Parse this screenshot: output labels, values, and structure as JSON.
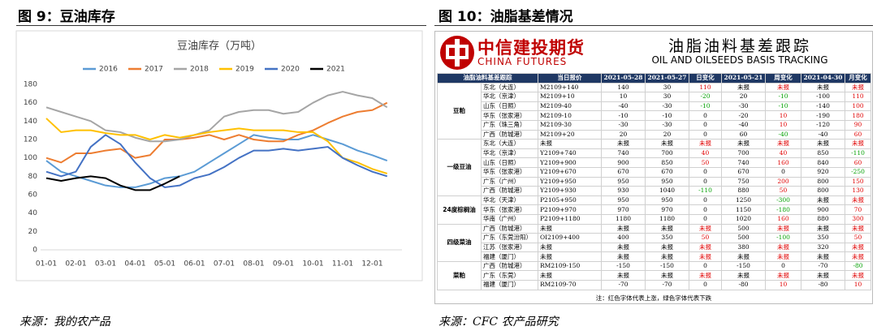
{
  "left": {
    "figure_title": "图 9：豆油库存",
    "source": "来源：我的农产品"
  },
  "chart_data": {
    "type": "line",
    "title": "豆油库存（万吨）",
    "categories": [
      "01-01",
      null,
      "02-01",
      null,
      "03-01",
      null,
      "04-01",
      null,
      "05-01",
      null,
      "06-01",
      null,
      "07-01",
      null,
      "08-01",
      null,
      "09-01",
      null,
      "10-01",
      null,
      "11-01",
      null,
      "12-01",
      null
    ],
    "ylim": [
      0,
      180
    ],
    "yticks": [
      0,
      20,
      40,
      60,
      80,
      100,
      120,
      140,
      160,
      180
    ],
    "grid": false,
    "legend": "top",
    "series": [
      {
        "name": "2016",
        "color": "#5b9bd5",
        "values": [
          97,
          85,
          80,
          75,
          70,
          68,
          68,
          72,
          78,
          80,
          85,
          95,
          105,
          115,
          125,
          122,
          120,
          120,
          125,
          120,
          115,
          108,
          103,
          97
        ]
      },
      {
        "name": "2017",
        "color": "#ed7d31",
        "values": [
          100,
          95,
          105,
          105,
          108,
          110,
          100,
          103,
          120,
          120,
          122,
          125,
          120,
          125,
          120,
          118,
          118,
          125,
          130,
          138,
          145,
          150,
          152,
          160
        ]
      },
      {
        "name": "2018",
        "color": "#a5a5a5",
        "values": [
          155,
          150,
          145,
          140,
          130,
          128,
          122,
          118,
          118,
          120,
          125,
          130,
          145,
          150,
          152,
          152,
          148,
          150,
          160,
          168,
          172,
          168,
          165,
          155
        ]
      },
      {
        "name": "2019",
        "color": "#ffc000",
        "values": [
          143,
          128,
          130,
          130,
          127,
          125,
          125,
          120,
          125,
          122,
          125,
          128,
          130,
          132,
          130,
          130,
          130,
          128,
          128,
          118,
          100,
          95,
          88,
          83
        ]
      },
      {
        "name": "2020",
        "color": "#4472c4",
        "values": [
          85,
          80,
          85,
          112,
          125,
          115,
          95,
          78,
          68,
          70,
          78,
          82,
          90,
          100,
          108,
          108,
          110,
          108,
          110,
          112,
          100,
          92,
          85,
          80
        ]
      },
      {
        "name": "2021",
        "color": "#000000",
        "values": [
          78,
          75,
          78,
          80,
          78,
          70,
          65,
          65,
          72,
          80,
          null,
          null,
          null,
          null,
          null,
          null,
          null,
          null,
          null,
          null,
          null,
          null,
          null,
          null
        ]
      }
    ]
  },
  "right": {
    "figure_title": "图 10：油脂基差情况",
    "source": "来源：CFC 农产品研究",
    "logo_cn": "中信建投期货",
    "logo_en": "CHINA FUTURES",
    "title_cn": "油脂油料基差跟踪",
    "title_en": "OIL AND OILSEEDS BASIS TRACKING",
    "table": {
      "header": [
        "油脂油料基差跟踪",
        "当日报价",
        "2021-05-28",
        "2021-05-27",
        "日变化",
        "2021-05-21",
        "周变化",
        "2021-04-30",
        "月变化"
      ],
      "groups": [
        {
          "name": "豆粕",
          "rows": [
            [
              "东北（大连）",
              "M2109+140",
              "140",
              "30",
              "110",
              "未报",
              "未报",
              "未报",
              "未报"
            ],
            [
              "华北（京津）",
              "M2109+10",
              "10",
              "30",
              "-20",
              "20",
              "-10",
              "-100",
              "110"
            ],
            [
              "山东（日照）",
              "M2109-40",
              "-40",
              "-30",
              "-10",
              "-30",
              "-10",
              "-140",
              "100"
            ],
            [
              "华东（张家港）",
              "M2109-10",
              "-10",
              "-10",
              "0",
              "-20",
              "10",
              "-190",
              "180"
            ],
            [
              "广东（珠三角）",
              "M2109-30",
              "-30",
              "-30",
              "0",
              "-40",
              "10",
              "-120",
              "90"
            ],
            [
              "广西（防城港）",
              "M2109+20",
              "20",
              "20",
              "0",
              "60",
              "-40",
              "-40",
              "60"
            ]
          ]
        },
        {
          "name": "一级豆油",
          "rows": [
            [
              "东北（大连）",
              "未报",
              "未报",
              "未报",
              "未报",
              "未报",
              "未报",
              "未报",
              "未报"
            ],
            [
              "华北（京津）",
              "Y2109+740",
              "740",
              "700",
              "40",
              "700",
              "40",
              "850",
              "-110"
            ],
            [
              "山东（日照）",
              "Y2109+900",
              "900",
              "850",
              "50",
              "740",
              "160",
              "840",
              "60"
            ],
            [
              "华东（张家港）",
              "Y2109+670",
              "670",
              "670",
              "0",
              "670",
              "0",
              "920",
              "-250"
            ],
            [
              "广东（广州）",
              "Y2109+950",
              "950",
              "950",
              "0",
              "750",
              "200",
              "800",
              "150"
            ],
            [
              "广西（防城港）",
              "Y2109+930",
              "930",
              "1040",
              "-110",
              "880",
              "50",
              "800",
              "130"
            ]
          ]
        },
        {
          "name": "24度棕榈油",
          "rows": [
            [
              "华北（天津）",
              "P2105+950",
              "950",
              "950",
              "0",
              "1250",
              "-300",
              "未报",
              "未报"
            ],
            [
              "华东（张家港）",
              "P2109+970",
              "970",
              "970",
              "0",
              "1150",
              "-180",
              "900",
              "70"
            ],
            [
              "华南（广州）",
              "P2109+1180",
              "1180",
              "1180",
              "0",
              "1020",
              "160",
              "880",
              "300"
            ]
          ]
        },
        {
          "name": "四级菜油",
          "rows": [
            [
              "广西（防城港）",
              "未报",
              "未报",
              "未报",
              "未报",
              "500",
              "未报",
              "未报",
              "未报"
            ],
            [
              "广东（东莞汾阳）",
              "OI2109+400",
              "400",
              "350",
              "50",
              "500",
              "-100",
              "350",
              "50"
            ],
            [
              "江苏（张家港）",
              "未报",
              "未报",
              "未报",
              "未报",
              "380",
              "未报",
              "320",
              "未报"
            ],
            [
              "福建（厦门）",
              "未报",
              "未报",
              "未报",
              "未报",
              "未报",
              "未报",
              "未报",
              "未报"
            ]
          ]
        },
        {
          "name": "菜粕",
          "rows": [
            [
              "广西（防城港）",
              "RM2109-150",
              "-150",
              "-150",
              "0",
              "-150",
              "0",
              "-70",
              "-80"
            ],
            [
              "广东（东莞）",
              "未报",
              "未报",
              "未报",
              "未报",
              "未报",
              "未报",
              "未报",
              "未报"
            ],
            [
              "福建（厦门）",
              "RM2109-70",
              "-70",
              "-70",
              "0",
              "-80",
              "10",
              "-80",
              "10"
            ]
          ]
        }
      ]
    },
    "note": "注：红色字体代表上涨，绿色字体代表下跌"
  }
}
